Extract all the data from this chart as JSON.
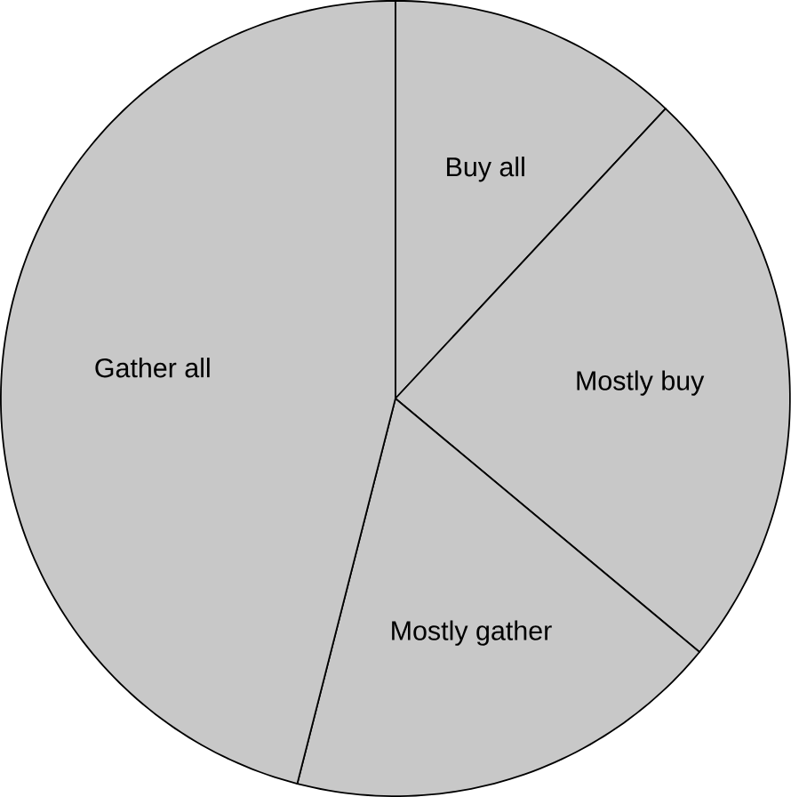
{
  "chart_data": {
    "type": "pie",
    "categories": [
      "Buy all",
      "Mostly buy",
      "Mostly gather",
      "Gather all"
    ],
    "values": [
      12,
      24,
      18,
      46
    ],
    "colors": [
      "#c8c8c8",
      "#c8c8c8",
      "#c8c8c8",
      "#c8c8c8"
    ]
  }
}
